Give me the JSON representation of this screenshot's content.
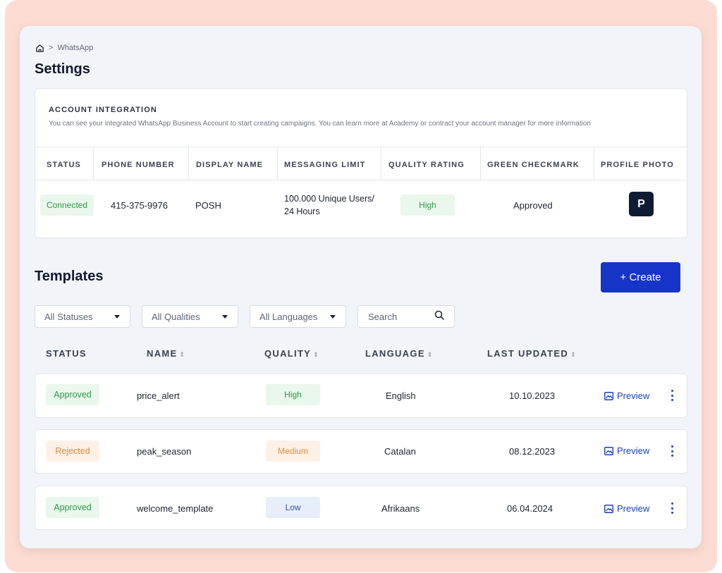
{
  "breadcrumb": {
    "home_icon": "home-icon",
    "separator": ">",
    "current": "WhatsApp"
  },
  "settings": {
    "title": "Settings",
    "account": {
      "title": "ACCOUNT INTEGRATION",
      "description": "You can see your integrated WhatsApp Business Account to start creating campaigns. You can learn more at Academy or contract your account manager for more information",
      "columns": [
        "STATUS",
        "PHONE NUMBER",
        "DISPLAY NAME",
        "MESSAGING LIMIT",
        "QUALITY RATING",
        "GREEN CHECKMARK",
        "PROFILE PHOTO"
      ],
      "row": {
        "status": "Connected",
        "phone": "415-375-9976",
        "display_name": "POSH",
        "messaging_limit_line1": "100.000 Unique Users/",
        "messaging_limit_line2": "24 Hours",
        "quality": "High",
        "green_checkmark": "Approved",
        "profile_initial": "P"
      }
    }
  },
  "templates": {
    "title": "Templates",
    "create_label": "+ Create",
    "filters": {
      "status": "All Statuses",
      "quality": "All Qualities",
      "language": "All Languages",
      "search_placeholder": "Search"
    },
    "columns": {
      "status": "STATUS",
      "name": "NAME",
      "quality": "QUALITY",
      "language": "LANGUAGE",
      "last_updated": "LAST UPDATED"
    },
    "preview_label": "Preview",
    "rows": [
      {
        "status": "Approved",
        "name": "price_alert",
        "quality": "High",
        "language": "English",
        "updated": "10.10.2023"
      },
      {
        "status": "Rejected",
        "name": "peak_season",
        "quality": "Medium",
        "language": "Catalan",
        "updated": "08.12.2023"
      },
      {
        "status": "Approved",
        "name": "welcome_template",
        "quality": "Low",
        "language": "Afrikaans",
        "updated": "06.04.2024"
      }
    ]
  },
  "colors": {
    "background": "#fcdcd3",
    "panel": "#f1f4f8",
    "accent": "#1734c8",
    "status_green": "#2f9a4c",
    "status_orange": "#e08a3c",
    "quality_blue": "#2b4fa8"
  }
}
